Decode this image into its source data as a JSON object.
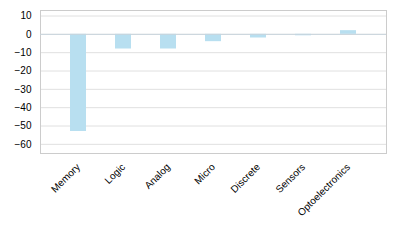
{
  "chart_data": {
    "type": "bar",
    "categories": [
      "Memory",
      "Logic",
      "Analog",
      "Micro",
      "Discrete",
      "Sensors",
      "Optoelectronics"
    ],
    "values": [
      -53,
      -8,
      -8,
      -4,
      -2,
      -0.8,
      2
    ],
    "color": "#b8dff0",
    "ylim": [
      -65,
      13
    ],
    "yticks": [
      10,
      0,
      -10,
      -20,
      -30,
      -40,
      -50,
      -60
    ],
    "grid": true
  }
}
